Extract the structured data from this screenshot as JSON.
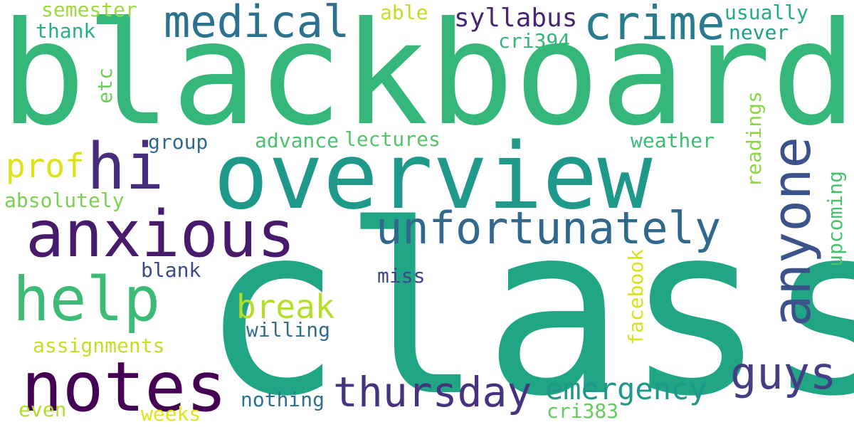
{
  "words": {
    "blackboard": "blackboard",
    "class": "class",
    "overview": "overview",
    "anxious": "anxious",
    "notes": "notes",
    "help": "help",
    "hi": "hi",
    "medical": "medical",
    "crime": "crime",
    "unfortunately": "unfortunately",
    "anyone": "anyone",
    "guys": "guys",
    "thursday": "thursday",
    "emergency": "emergency",
    "break": "break",
    "prof": "prof",
    "semester": "semester",
    "thank": "thank",
    "able": "able",
    "syllabus": "syllabus",
    "cri394": "cri394",
    "usually": "usually",
    "never": "never",
    "etc": "etc",
    "group": "group",
    "advance": "advance",
    "lectures": "lectures",
    "weather": "weather",
    "readings": "readings",
    "absolutely": "absolutely",
    "upcoming": "upcoming",
    "blank": "blank",
    "miss": "miss",
    "facebook": "facebook",
    "willing": "willing",
    "assignments": "assignments",
    "nothing": "nothing",
    "even": "even",
    "weeks": "weeks",
    "cri383": "cri383"
  },
  "colors": {
    "background": "#ffffff",
    "palette": "viridis"
  }
}
